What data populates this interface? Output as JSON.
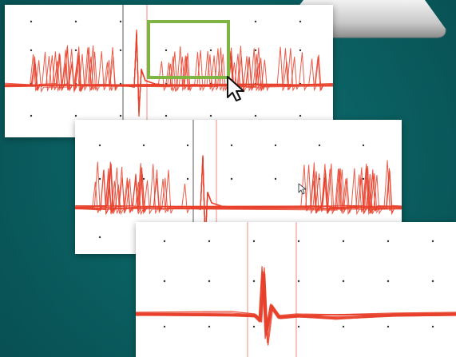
{
  "scene": {
    "background_color": "#0a5e60",
    "trace_color": "#e8402a",
    "cursor_line_color": "#f08a80",
    "selection_box_color": "#7fb543",
    "icons": [
      "arrow-pointer-icon",
      "arrow-pointer-icon"
    ]
  },
  "panels": [
    {
      "name": "overview-recording",
      "traces": 12,
      "selection_box": true,
      "cursor": "arrow-pointer"
    },
    {
      "name": "zoomed-recording",
      "traces": 12,
      "cursor": "arrow-pointer"
    },
    {
      "name": "spike-detail-recording",
      "traces": 10
    }
  ]
}
